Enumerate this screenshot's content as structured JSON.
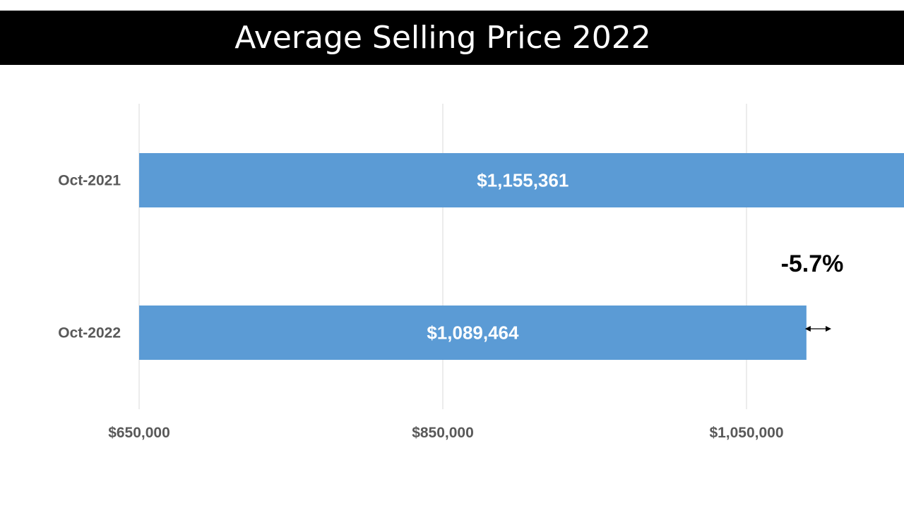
{
  "chart_data": {
    "type": "bar",
    "orientation": "horizontal",
    "title": "Average Selling Price 2022",
    "categories": [
      "Oct-2021",
      "Oct-2022"
    ],
    "values": [
      1155361,
      1089464
    ],
    "data_labels": [
      "$1,155,361",
      "$1,089,464"
    ],
    "x_ticks": [
      650000,
      850000,
      1050000
    ],
    "x_tick_labels": [
      "$650,000",
      "$850,000",
      "$1,050,000"
    ],
    "xlim": [
      650000,
      1200000
    ],
    "grid": "vertical",
    "bar_color": "#5B9BD5",
    "annotation": "-5.7%"
  }
}
